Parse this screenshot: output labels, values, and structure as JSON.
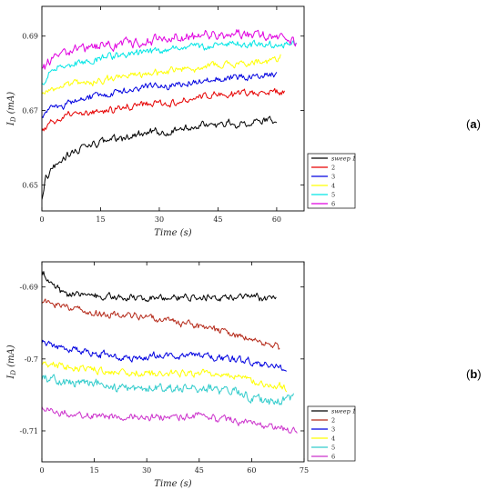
{
  "figure": {
    "panels": [
      {
        "tag_open": "(",
        "tag_letter": "a",
        "tag_close": ")"
      },
      {
        "tag_open": "(",
        "tag_letter": "b",
        "tag_close": ")"
      }
    ]
  },
  "chart_data": [
    {
      "type": "line",
      "title": "",
      "xlabel": "Time (s)",
      "ylabel": "I_D (mA)",
      "ylabel_main": "I",
      "ylabel_sub": "D",
      "ylabel_rest": " (mA)",
      "xlim": [
        0,
        67
      ],
      "ylim": [
        0.643,
        0.698
      ],
      "xticks": [
        0,
        15,
        30,
        45,
        60
      ],
      "xtick_labels": [
        "0",
        "15",
        "30",
        "45",
        "60"
      ],
      "yticks": [
        0.65,
        0.67,
        0.69
      ],
      "ytick_labels": [
        "0.65",
        "0.67",
        "0.69"
      ],
      "grid": false,
      "legend_position": "right-bottom-outside",
      "legend_entries": [
        "sweep 1",
        "2",
        "3",
        "4",
        "5",
        "6"
      ],
      "series": [
        {
          "name": "sweep 1",
          "color": "#000000",
          "x_end": 60,
          "noise": 0.0009,
          "points": [
            [
              0,
              0.646
            ],
            [
              1,
              0.6515
            ],
            [
              3,
              0.6545
            ],
            [
              5,
              0.657
            ],
            [
              8,
              0.659
            ],
            [
              12,
              0.6605
            ],
            [
              15,
              0.6615
            ],
            [
              20,
              0.6625
            ],
            [
              25,
              0.6635
            ],
            [
              30,
              0.664
            ],
            [
              35,
              0.665
            ],
            [
              40,
              0.666
            ],
            [
              45,
              0.6665
            ],
            [
              50,
              0.6665
            ],
            [
              55,
              0.667
            ],
            [
              60,
              0.6675
            ]
          ]
        },
        {
          "name": "2",
          "color": "#e60000",
          "x_end": 62,
          "noise": 0.0008,
          "points": [
            [
              0,
              0.664
            ],
            [
              2,
              0.6665
            ],
            [
              5,
              0.668
            ],
            [
              10,
              0.669
            ],
            [
              15,
              0.6695
            ],
            [
              20,
              0.6705
            ],
            [
              25,
              0.6715
            ],
            [
              30,
              0.672
            ],
            [
              35,
              0.6725
            ],
            [
              40,
              0.6735
            ],
            [
              45,
              0.674
            ],
            [
              50,
              0.6745
            ],
            [
              55,
              0.675
            ],
            [
              60,
              0.675
            ],
            [
              62,
              0.675
            ]
          ]
        },
        {
          "name": "3",
          "color": "#0000e0",
          "x_end": 60,
          "noise": 0.0008,
          "points": [
            [
              0,
              0.668
            ],
            [
              2,
              0.6705
            ],
            [
              5,
              0.6715
            ],
            [
              10,
              0.673
            ],
            [
              15,
              0.6745
            ],
            [
              20,
              0.675
            ],
            [
              25,
              0.676
            ],
            [
              30,
              0.6765
            ],
            [
              35,
              0.677
            ],
            [
              40,
              0.678
            ],
            [
              45,
              0.6785
            ],
            [
              50,
              0.679
            ],
            [
              55,
              0.6795
            ],
            [
              60,
              0.68
            ]
          ]
        },
        {
          "name": "4",
          "color": "#ffff00",
          "x_end": 61,
          "noise": 0.0008,
          "points": [
            [
              0,
              0.674
            ],
            [
              2,
              0.6755
            ],
            [
              5,
              0.6765
            ],
            [
              10,
              0.6775
            ],
            [
              15,
              0.678
            ],
            [
              20,
              0.679
            ],
            [
              25,
              0.6795
            ],
            [
              30,
              0.68
            ],
            [
              35,
              0.681
            ],
            [
              40,
              0.6815
            ],
            [
              45,
              0.682
            ],
            [
              50,
              0.6825
            ],
            [
              55,
              0.683
            ],
            [
              60,
              0.6835
            ],
            [
              61,
              0.6845
            ]
          ]
        },
        {
          "name": "5",
          "color": "#00e5e5",
          "x_end": 65,
          "noise": 0.0008,
          "points": [
            [
              0,
              0.677
            ],
            [
              2,
              0.6805
            ],
            [
              5,
              0.6815
            ],
            [
              10,
              0.683
            ],
            [
              15,
              0.684
            ],
            [
              20,
              0.685
            ],
            [
              25,
              0.6855
            ],
            [
              30,
              0.686
            ],
            [
              35,
              0.6865
            ],
            [
              40,
              0.687
            ],
            [
              45,
              0.6875
            ],
            [
              50,
              0.688
            ],
            [
              55,
              0.6875
            ],
            [
              60,
              0.688
            ],
            [
              65,
              0.688
            ]
          ]
        },
        {
          "name": "6",
          "color": "#e000e0",
          "x_end": 65,
          "noise": 0.0011,
          "points": [
            [
              0,
              0.681
            ],
            [
              2,
              0.6835
            ],
            [
              5,
              0.685
            ],
            [
              10,
              0.6865
            ],
            [
              15,
              0.6875
            ],
            [
              20,
              0.688
            ],
            [
              25,
              0.6885
            ],
            [
              30,
              0.689
            ],
            [
              35,
              0.6895
            ],
            [
              40,
              0.69
            ],
            [
              45,
              0.69
            ],
            [
              50,
              0.6905
            ],
            [
              55,
              0.6905
            ],
            [
              60,
              0.6895
            ],
            [
              65,
              0.6885
            ]
          ]
        }
      ]
    },
    {
      "type": "line",
      "title": "",
      "xlabel": "Time (s)",
      "ylabel": "I_D (mA)",
      "ylabel_main": "I",
      "ylabel_sub": "D",
      "ylabel_rest": " (mA)",
      "xlim": [
        0,
        75
      ],
      "ylim": [
        -0.7143,
        -0.6865
      ],
      "xticks": [
        0,
        15,
        30,
        45,
        60,
        75
      ],
      "xtick_labels": [
        "0",
        "15",
        "30",
        "45",
        "60",
        "75"
      ],
      "yticks": [
        -0.69,
        -0.7,
        -0.71
      ],
      "ytick_labels": [
        "-0.69",
        "-0.7",
        "-0.71"
      ],
      "grid": false,
      "legend_position": "right-bottom-outside",
      "legend_entries": [
        "sweep 1",
        "2",
        "3",
        "4",
        "5",
        "6"
      ],
      "series": [
        {
          "name": "sweep 1",
          "color": "#000000",
          "x_end": 67,
          "noise": 0.0004,
          "points": [
            [
              0,
              -0.6875
            ],
            [
              1,
              -0.6885
            ],
            [
              3,
              -0.6895
            ],
            [
              5,
              -0.6905
            ],
            [
              8,
              -0.691
            ],
            [
              15,
              -0.6912
            ],
            [
              25,
              -0.6915
            ],
            [
              35,
              -0.6915
            ],
            [
              45,
              -0.6915
            ],
            [
              55,
              -0.6915
            ],
            [
              62,
              -0.6915
            ],
            [
              67,
              -0.6915
            ]
          ]
        },
        {
          "name": "2",
          "color": "#b52a1a",
          "x_end": 68,
          "noise": 0.0004,
          "points": [
            [
              0,
              -0.692
            ],
            [
              3,
              -0.6925
            ],
            [
              8,
              -0.693
            ],
            [
              15,
              -0.6935
            ],
            [
              25,
              -0.694
            ],
            [
              35,
              -0.6945
            ],
            [
              45,
              -0.6955
            ],
            [
              55,
              -0.6965
            ],
            [
              60,
              -0.6975
            ],
            [
              65,
              -0.698
            ],
            [
              68,
              -0.6985
            ]
          ]
        },
        {
          "name": "3",
          "color": "#0000e0",
          "x_end": 70,
          "noise": 0.0004,
          "points": [
            [
              0,
              -0.6975
            ],
            [
              5,
              -0.6985
            ],
            [
              15,
              -0.699
            ],
            [
              25,
              -0.7
            ],
            [
              35,
              -0.6995
            ],
            [
              45,
              -0.6995
            ],
            [
              55,
              -0.7
            ],
            [
              60,
              -0.7005
            ],
            [
              65,
              -0.701
            ],
            [
              70,
              -0.7015
            ]
          ]
        },
        {
          "name": "4",
          "color": "#ffff00",
          "x_end": 70,
          "noise": 0.0004,
          "points": [
            [
              0,
              -0.7005
            ],
            [
              5,
              -0.701
            ],
            [
              15,
              -0.7015
            ],
            [
              25,
              -0.702
            ],
            [
              35,
              -0.702
            ],
            [
              45,
              -0.702
            ],
            [
              55,
              -0.7025
            ],
            [
              60,
              -0.703
            ],
            [
              65,
              -0.7035
            ],
            [
              70,
              -0.704
            ]
          ]
        },
        {
          "name": "5",
          "color": "#33cccc",
          "x_end": 72,
          "noise": 0.0005,
          "points": [
            [
              0,
              -0.7025
            ],
            [
              5,
              -0.703
            ],
            [
              15,
              -0.7035
            ],
            [
              25,
              -0.704
            ],
            [
              35,
              -0.704
            ],
            [
              45,
              -0.704
            ],
            [
              55,
              -0.7045
            ],
            [
              60,
              -0.7055
            ],
            [
              65,
              -0.706
            ],
            [
              72,
              -0.7055
            ]
          ]
        },
        {
          "name": "6",
          "color": "#cc33cc",
          "x_end": 73,
          "noise": 0.0004,
          "points": [
            [
              0,
              -0.7065
            ],
            [
              5,
              -0.7075
            ],
            [
              15,
              -0.708
            ],
            [
              25,
              -0.708
            ],
            [
              35,
              -0.708
            ],
            [
              45,
              -0.708
            ],
            [
              55,
              -0.7085
            ],
            [
              62,
              -0.709
            ],
            [
              68,
              -0.7095
            ],
            [
              73,
              -0.71
            ]
          ]
        }
      ]
    }
  ]
}
